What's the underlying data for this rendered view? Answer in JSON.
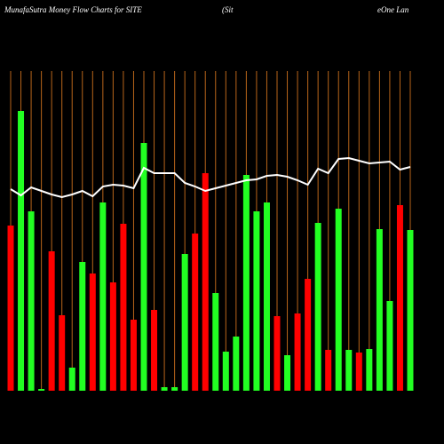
{
  "chart_data": {
    "type": "bar",
    "title_parts": [
      "MunafaSutra  Money Flow  Charts for SITE",
      "(Sit",
      "eOne   Lan"
    ],
    "categories": [
      null,
      null,
      null,
      null,
      null,
      null,
      null,
      null,
      null,
      null,
      null,
      null,
      null,
      null,
      null,
      null,
      null,
      null,
      null,
      null,
      null,
      null,
      null,
      null,
      null,
      null,
      null,
      null,
      null,
      null,
      null,
      null,
      null,
      null,
      null,
      null,
      null,
      null,
      null,
      null
    ],
    "series": [
      {
        "type": "bar",
        "values": [
          186,
          315,
          202,
          2,
          157,
          85,
          26,
          145,
          132,
          212,
          122,
          188,
          80,
          279,
          91,
          4,
          4,
          154,
          177,
          245,
          110,
          44,
          61,
          243,
          202,
          212,
          84,
          40,
          87,
          126,
          189,
          46,
          205,
          46,
          43,
          47,
          182,
          101,
          209,
          181
        ],
        "colors": [
          "#ff0000",
          "#22ff22",
          "#22ff22",
          "#22ff22",
          "#ff0000",
          "#ff0000",
          "#22ff22",
          "#22ff22",
          "#ff0000",
          "#22ff22",
          "#ff0000",
          "#ff0000",
          "#ff0000",
          "#22ff22",
          "#ff0000",
          "#22ff22",
          "#22ff22",
          "#22ff22",
          "#ff0000",
          "#ff0000",
          "#22ff22",
          "#22ff22",
          "#22ff22",
          "#22ff22",
          "#22ff22",
          "#22ff22",
          "#ff0000",
          "#22ff22",
          "#ff0000",
          "#ff0000",
          "#22ff22",
          "#ff0000",
          "#22ff22",
          "#22ff22",
          "#ff0000",
          "#22ff22",
          "#22ff22",
          "#22ff22",
          "#ff0000",
          "#22ff22"
        ]
      },
      {
        "type": "line",
        "color": "#ffffff",
        "values": [
          227,
          220,
          229,
          225,
          221,
          218,
          221,
          225,
          219,
          230,
          232,
          231,
          228,
          251,
          245,
          245,
          245,
          234,
          230,
          225,
          228,
          231,
          234,
          237,
          238,
          242,
          243,
          241,
          237,
          232,
          250,
          245,
          261,
          262,
          259,
          256,
          257,
          258,
          249,
          252
        ]
      }
    ],
    "ylim": [
      0,
      360
    ],
    "grid_color": "#b8651a"
  }
}
